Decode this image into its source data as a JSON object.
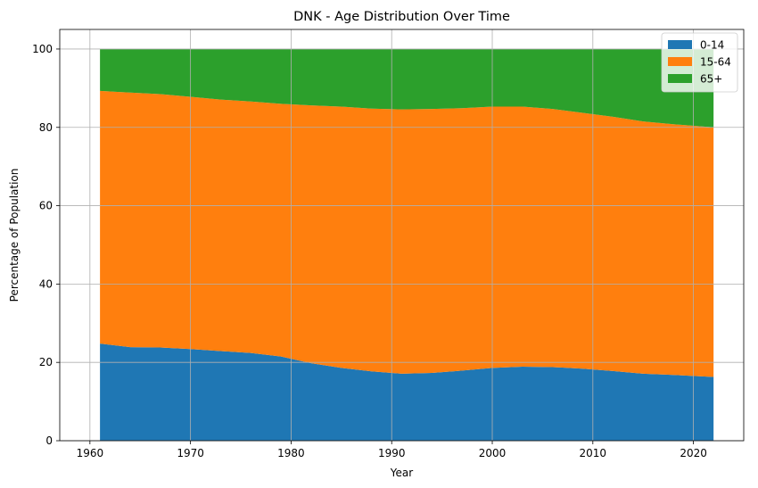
{
  "chart_data": {
    "type": "area",
    "stacked": true,
    "title": "DNK - Age Distribution Over Time",
    "xlabel": "Year",
    "ylabel": "Percentage of Population",
    "xlim": [
      1957,
      2025
    ],
    "ylim": [
      0,
      105
    ],
    "xticks": [
      1960,
      1970,
      1980,
      1990,
      2000,
      2010,
      2020
    ],
    "yticks": [
      0,
      20,
      40,
      60,
      80,
      100
    ],
    "grid": true,
    "legend_position": "top-right",
    "x": [
      1961,
      1964,
      1967,
      1970,
      1973,
      1976,
      1979,
      1982,
      1985,
      1988,
      1991,
      1994,
      1997,
      2000,
      2003,
      2006,
      2009,
      2012,
      2015,
      2018,
      2022
    ],
    "series": [
      {
        "name": "0-14",
        "color": "#1f77b4",
        "values": [
          24.8,
          23.9,
          23.8,
          23.4,
          22.9,
          22.4,
          21.5,
          19.8,
          18.6,
          17.7,
          17.1,
          17.3,
          17.9,
          18.6,
          18.9,
          18.8,
          18.4,
          17.8,
          17.1,
          16.8,
          16.3
        ]
      },
      {
        "name": "15-64",
        "color": "#ff7f0e",
        "values": [
          64.5,
          65.0,
          64.7,
          64.4,
          64.2,
          64.2,
          64.5,
          65.8,
          66.7,
          67.1,
          67.5,
          67.4,
          67.0,
          66.7,
          66.4,
          65.9,
          65.3,
          64.9,
          64.4,
          64.0,
          63.7
        ]
      },
      {
        "name": "65+",
        "color": "#2ca02c",
        "values": [
          10.7,
          11.1,
          11.5,
          12.2,
          12.9,
          13.4,
          14.0,
          14.4,
          14.7,
          15.2,
          15.4,
          15.3,
          15.1,
          14.7,
          14.7,
          15.3,
          16.3,
          17.3,
          18.5,
          19.2,
          20.0
        ]
      }
    ]
  }
}
